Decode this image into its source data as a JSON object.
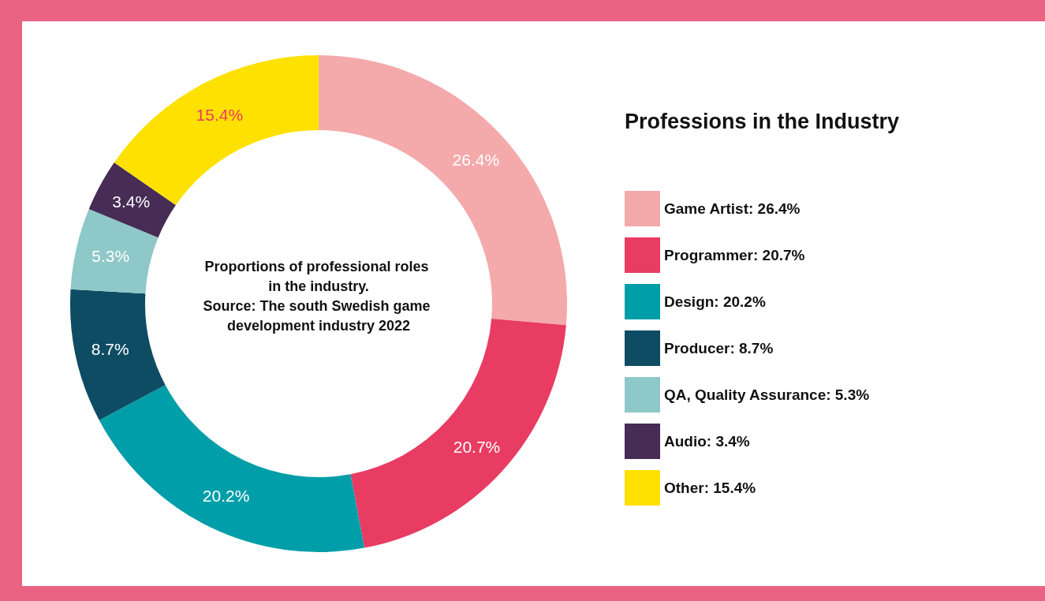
{
  "chart_data": {
    "type": "donut",
    "title": "Professions in the Industry",
    "categories": [
      "Game Artist: 26.4%",
      "Programmer: 20.7%",
      "Design: 20.2%",
      "Producer: 8.7%",
      "QA, Quality Assurance: 5.3%",
      "Audio: 3.4%",
      "Other: 15.4%"
    ],
    "values": [
      26.4,
      20.7,
      20.2,
      8.7,
      5.3,
      3.4,
      15.4
    ],
    "value_labels": [
      "26.4%",
      "20.7%",
      "20.2%",
      "8.7%",
      "5.3%",
      "3.4%",
      "15.4%"
    ],
    "colors": [
      "#f4a9ab",
      "#e83c63",
      "#009ea8",
      "#0e4c63",
      "#8fc8c8",
      "#472c56",
      "#ffe100"
    ],
    "legend": "right",
    "annotations": [
      "Proportions of professional roles in the industry.",
      "Source: The south Swedish game development industry 2022"
    ]
  }
}
